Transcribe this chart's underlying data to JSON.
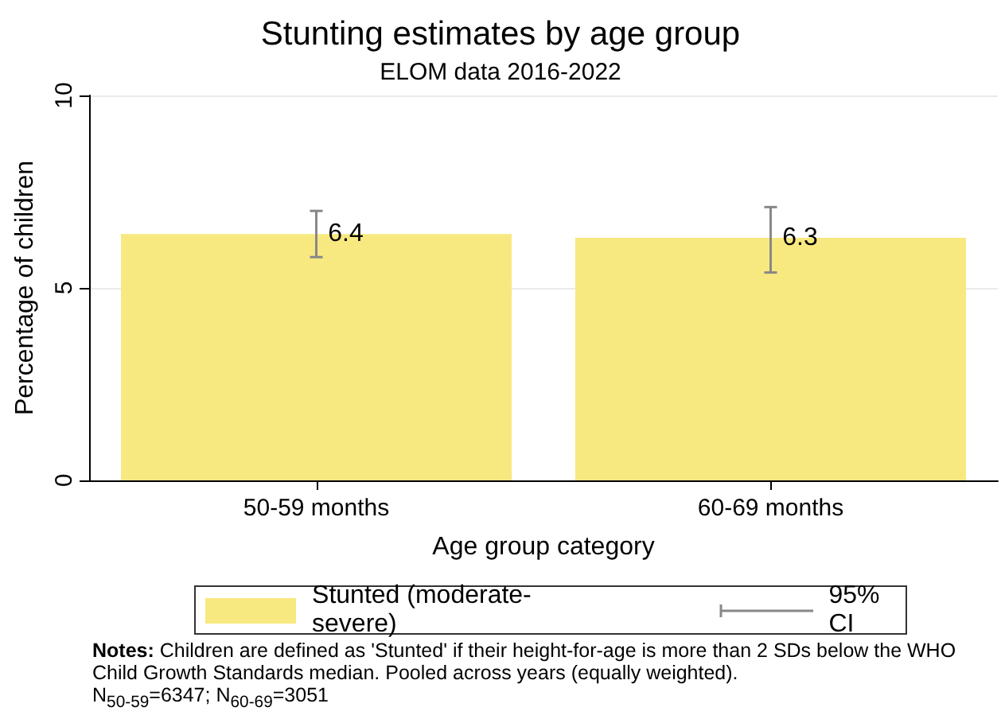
{
  "chart_data": {
    "type": "bar",
    "title": "Stunting estimates by age group",
    "subtitle": "ELOM data 2016-2022",
    "xlabel": "Age group category",
    "ylabel": "Percentage of children",
    "categories": [
      "50-59 months",
      "60-69 months"
    ],
    "series": [
      {
        "name": "Stunted (moderate-severe)",
        "color": "#f8e880",
        "values": [
          6.4,
          6.3
        ],
        "errors": [
          [
            5.8,
            7.0
          ],
          [
            5.4,
            7.1
          ]
        ]
      }
    ],
    "data_labels": true,
    "ylim": [
      0,
      10
    ],
    "yticks": [
      0,
      5,
      10
    ],
    "grid": "y",
    "legend": "bottom",
    "annotations": [
      "95% CI",
      "Notes:",
      "Children are defined as 'Stunted' if their height-for-age is more than 2 SDs below the WHO Child Growth Standards median. Pooled across years (equally weighted).",
      "N$_{50-59}$=6347; N$_{60-69}$=3051"
    ]
  }
}
